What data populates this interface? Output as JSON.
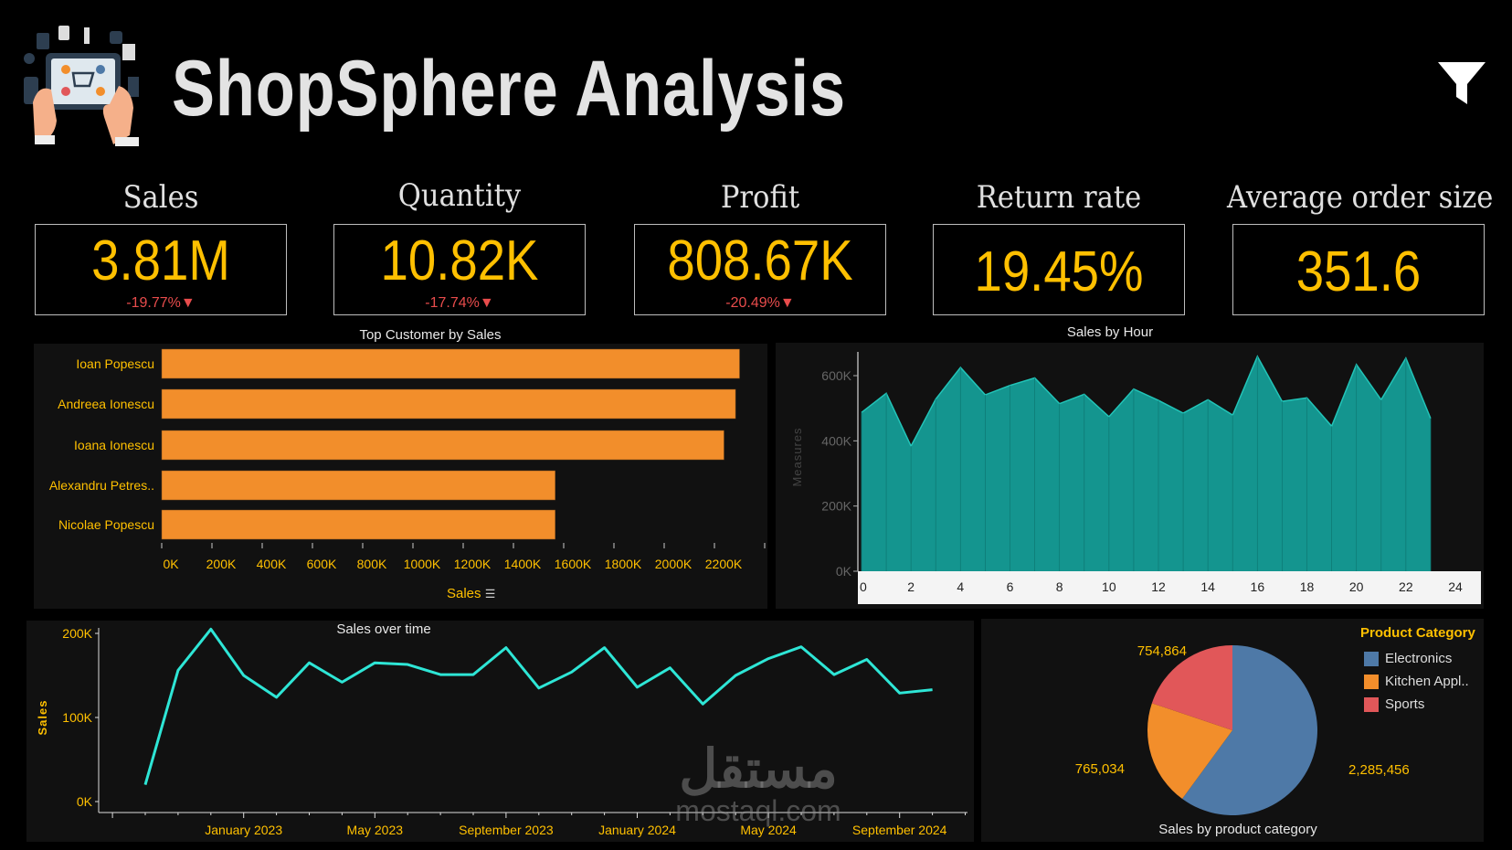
{
  "header": {
    "title": "ShopSphere Analysis",
    "logo_icon": "shopping-tablet-logo",
    "filter_icon": "filter-icon"
  },
  "kpis": [
    {
      "label": "Sales",
      "value": "3.81M",
      "delta": "-19.77%",
      "trend": "down"
    },
    {
      "label": "Quantity",
      "value": "10.82K",
      "delta": "-17.74%",
      "trend": "down"
    },
    {
      "label": "Profit",
      "value": "808.67K",
      "delta": "-20.49%",
      "trend": "down"
    },
    {
      "label": "Return rate",
      "value": "19.45%"
    },
    {
      "label": "Average order size",
      "value": "351.6"
    }
  ],
  "colors": {
    "accent": "#ffc000",
    "bar": "#f28e2b",
    "area": "#14958f",
    "line": "#2ee6d6",
    "negative": "#e84c4c"
  },
  "watermark": {
    "arabic": "مستقل",
    "latin": "mostaql.com"
  },
  "chart_data": [
    {
      "type": "bar",
      "title": "Top Customer by Sales",
      "orientation": "horizontal",
      "categories": [
        "Ioan Popescu",
        "Andreea Ionescu",
        "Ioana Ionescu",
        "Alexandru Petres..",
        "Nicolae Popescu"
      ],
      "values": [
        2300000,
        2284000,
        2238000,
        1566000,
        1566000
      ],
      "xlabel": "Sales",
      "xlim": [
        0,
        2400000
      ],
      "xticks": [
        "0K",
        "200K",
        "400K",
        "600K",
        "800K",
        "1000K",
        "1200K",
        "1400K",
        "1600K",
        "1800K",
        "2000K",
        "2200K"
      ],
      "grid": false
    },
    {
      "type": "area",
      "title": "Sales by Hour",
      "ylabel": "Measures",
      "x": [
        0,
        1,
        2,
        3,
        4,
        5,
        6,
        7,
        8,
        9,
        10,
        11,
        12,
        13,
        14,
        15,
        16,
        17,
        18,
        19,
        20,
        21,
        22,
        23
      ],
      "values": [
        487000,
        546000,
        384000,
        528000,
        625000,
        541000,
        570000,
        593000,
        514000,
        543000,
        474000,
        559000,
        524000,
        485000,
        526000,
        479000,
        659000,
        521000,
        532000,
        445000,
        634000,
        526000,
        654000,
        469000
      ],
      "xlim": [
        0,
        24
      ],
      "ylim": [
        0,
        700000
      ],
      "xticks": [
        "0",
        "2",
        "4",
        "6",
        "8",
        "10",
        "12",
        "14",
        "16",
        "18",
        "20",
        "22",
        "24"
      ],
      "yticks": [
        "0K",
        "200K",
        "400K",
        "600K"
      ],
      "grid": false
    },
    {
      "type": "line",
      "title": "Sales over time",
      "ylabel": "Sales",
      "x": [
        "2022-10",
        "2022-11",
        "2022-12",
        "2023-01",
        "2023-02",
        "2023-03",
        "2023-04",
        "2023-05",
        "2023-06",
        "2023-07",
        "2023-08",
        "2023-09",
        "2023-10",
        "2023-11",
        "2023-12",
        "2024-01",
        "2024-02",
        "2024-03",
        "2024-04",
        "2024-05",
        "2024-06",
        "2024-07",
        "2024-08",
        "2024-09",
        "2024-10"
      ],
      "values": [
        20000,
        156000,
        205000,
        150000,
        124000,
        165000,
        142000,
        165000,
        163000,
        151000,
        151000,
        183000,
        135000,
        154000,
        183000,
        136000,
        159000,
        116000,
        150000,
        170000,
        184000,
        151000,
        169000,
        129000,
        133000
      ],
      "ylim": [
        0,
        210000
      ],
      "yticks": [
        "0K",
        "100K",
        "200K"
      ],
      "xticks": [
        "January 2023",
        "May 2023",
        "September 2023",
        "January 2024",
        "May 2024",
        "September 2024"
      ],
      "grid": false
    },
    {
      "type": "pie",
      "title": "Sales by product category",
      "legend_title": "Product Category",
      "legend_position": "top-right",
      "categories": [
        "Electronics",
        "Kitchen Appl..",
        "Sports"
      ],
      "values": [
        2285456,
        765034,
        754864
      ],
      "labels": [
        "2,285,456",
        "765,034",
        "754,864"
      ],
      "colors": [
        "#4e79a7",
        "#f28e2b",
        "#e15759"
      ]
    }
  ]
}
